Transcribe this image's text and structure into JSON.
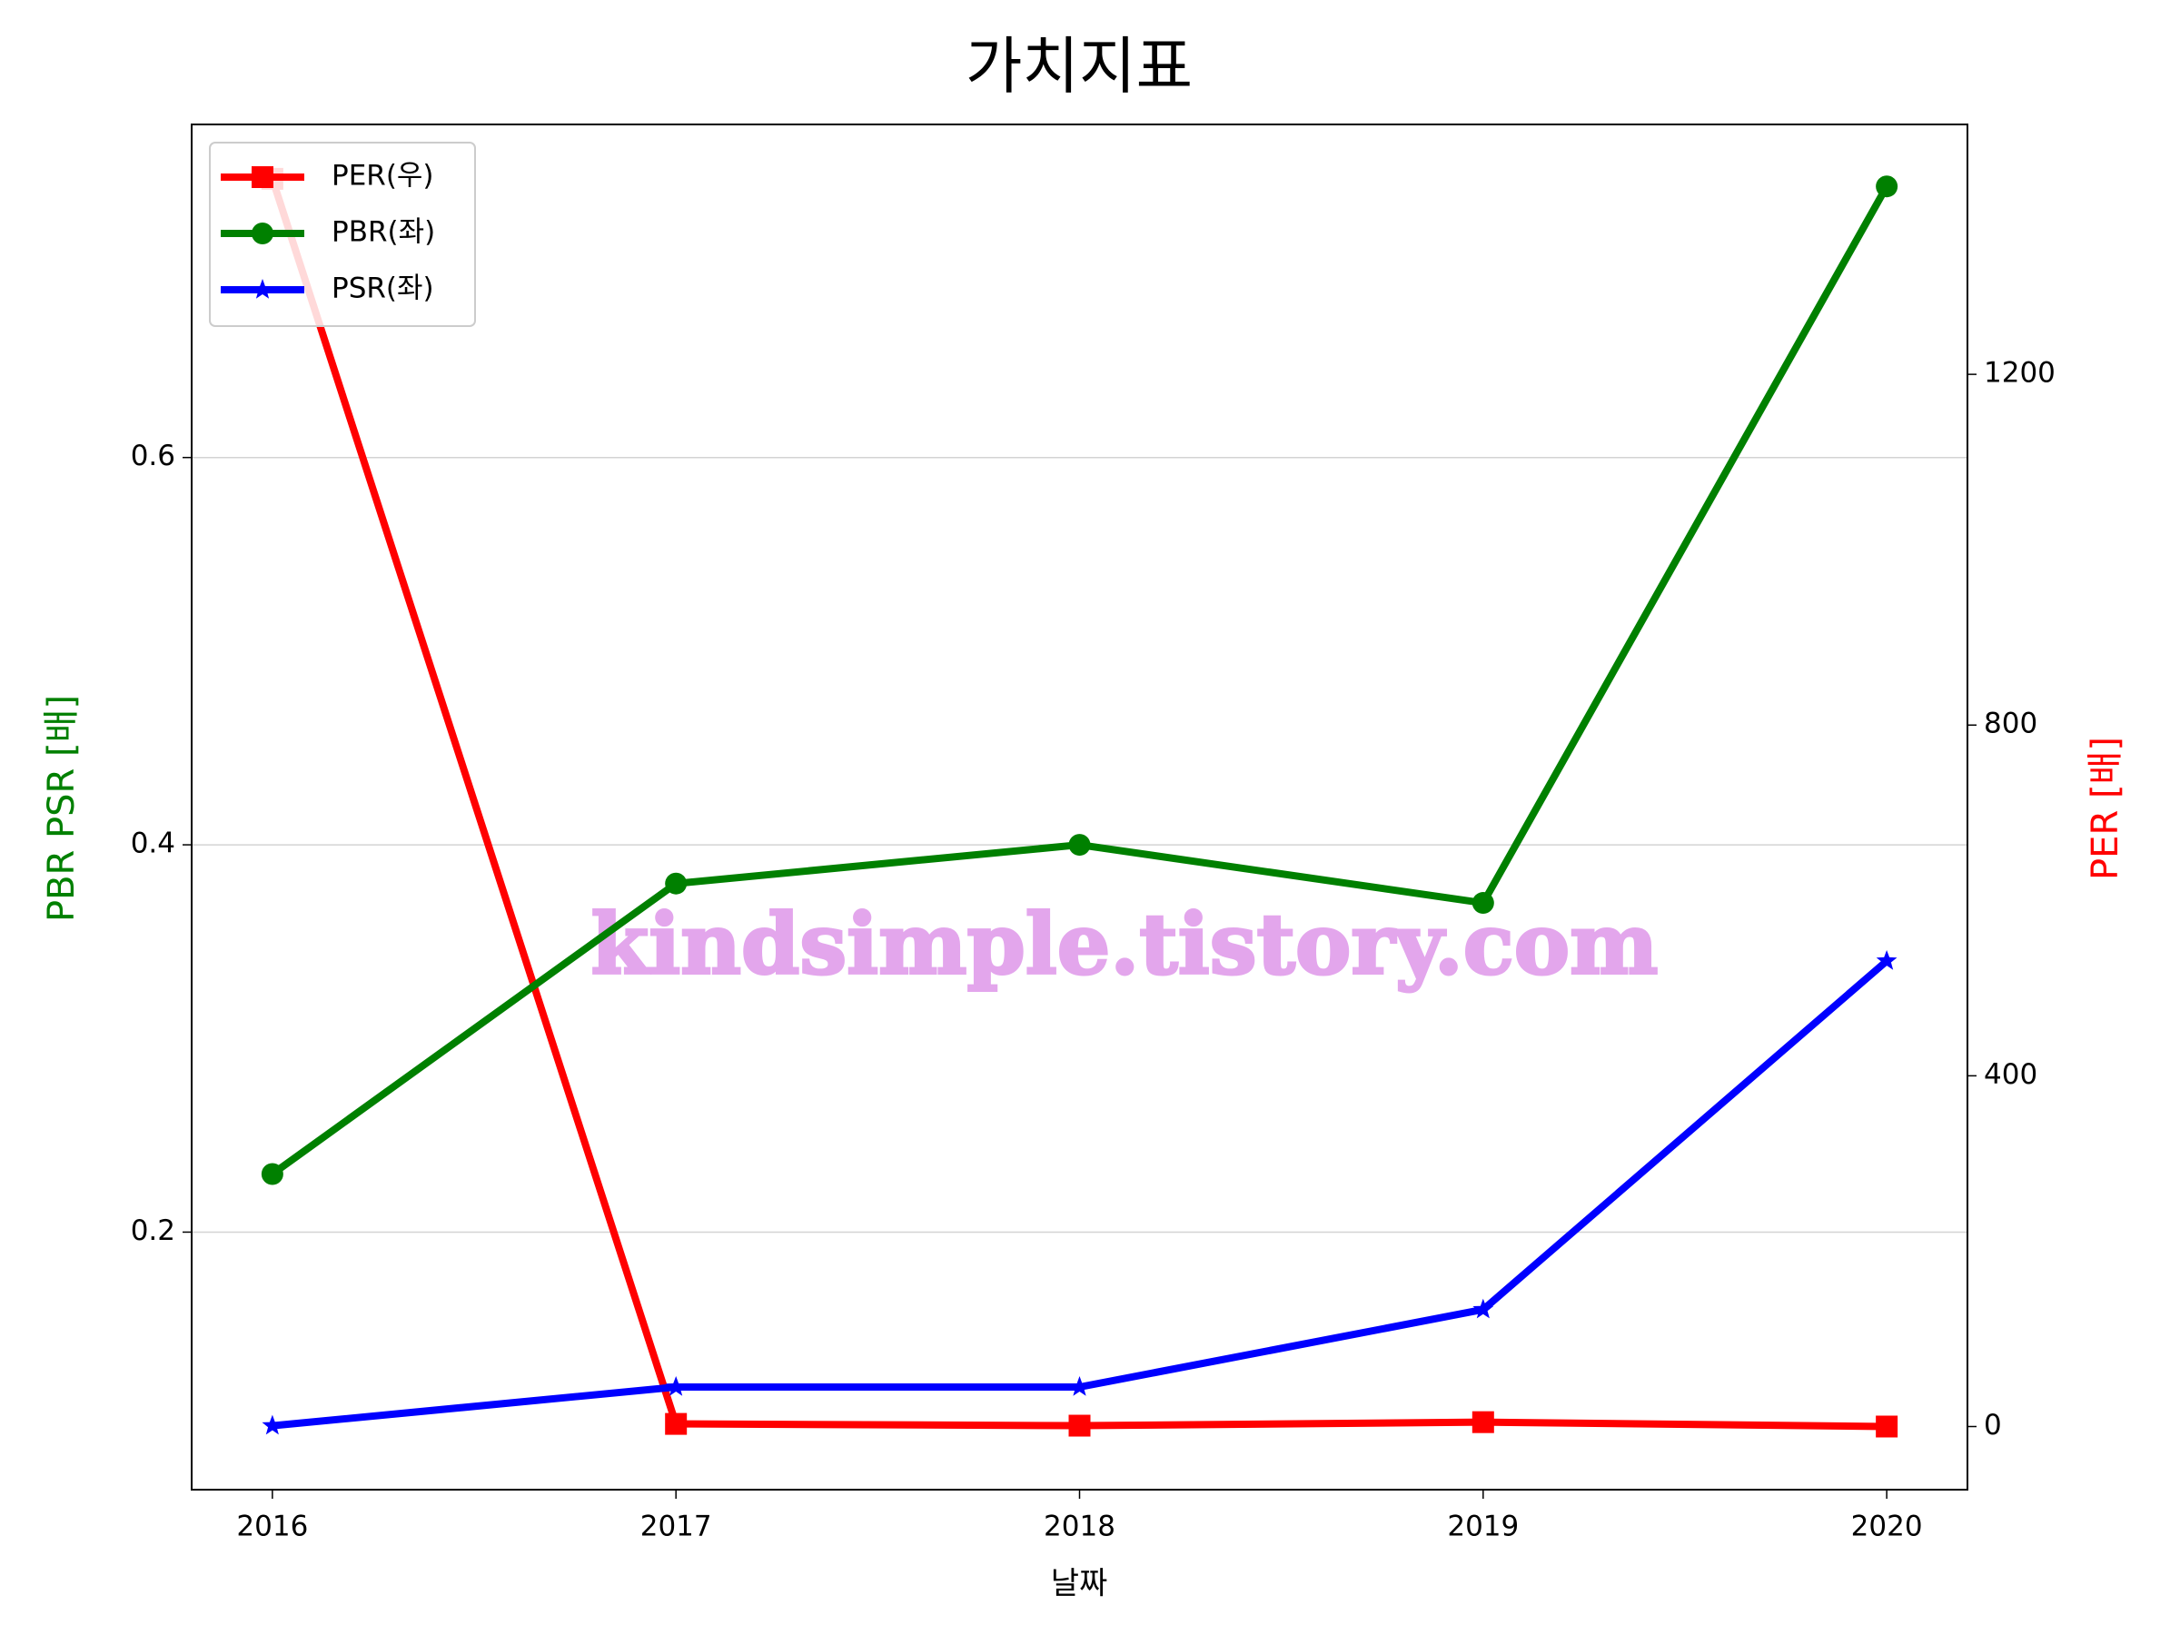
{
  "chart_data": {
    "type": "line",
    "title": "가치지표",
    "x": [
      2016,
      2017,
      2018,
      2019,
      2020
    ],
    "xlim": [
      2015.8,
      2020.2
    ],
    "xticks": [
      2016,
      2017,
      2018,
      2019,
      2020
    ],
    "xlabel": "날짜",
    "ylabel": "PBR PSR [배]",
    "y2label": "PER [배]",
    "ylabel_color": "green",
    "y2label_color": "red",
    "ylim": [
      0.067,
      0.772
    ],
    "yticks": [
      0.2,
      0.4,
      0.6
    ],
    "y2lim": [
      -72,
      1485
    ],
    "y2ticks": [
      0,
      400,
      800,
      1200
    ],
    "grid": true,
    "legend": "upper left",
    "annotation": "kindsimple.tistory.com",
    "series": [
      {
        "name": "PER(우)",
        "color": "red",
        "marker": "square",
        "axis": "y2",
        "values": [
          1423,
          3,
          1,
          5,
          0
        ]
      },
      {
        "name": "PBR(좌)",
        "color": "green",
        "marker": "circle",
        "values": [
          0.23,
          0.38,
          0.4,
          0.37,
          0.74
        ]
      },
      {
        "name": "PSR(좌)",
        "color": "blue",
        "marker": "star",
        "values": [
          0.1,
          0.12,
          0.12,
          0.16,
          0.34
        ]
      }
    ]
  }
}
